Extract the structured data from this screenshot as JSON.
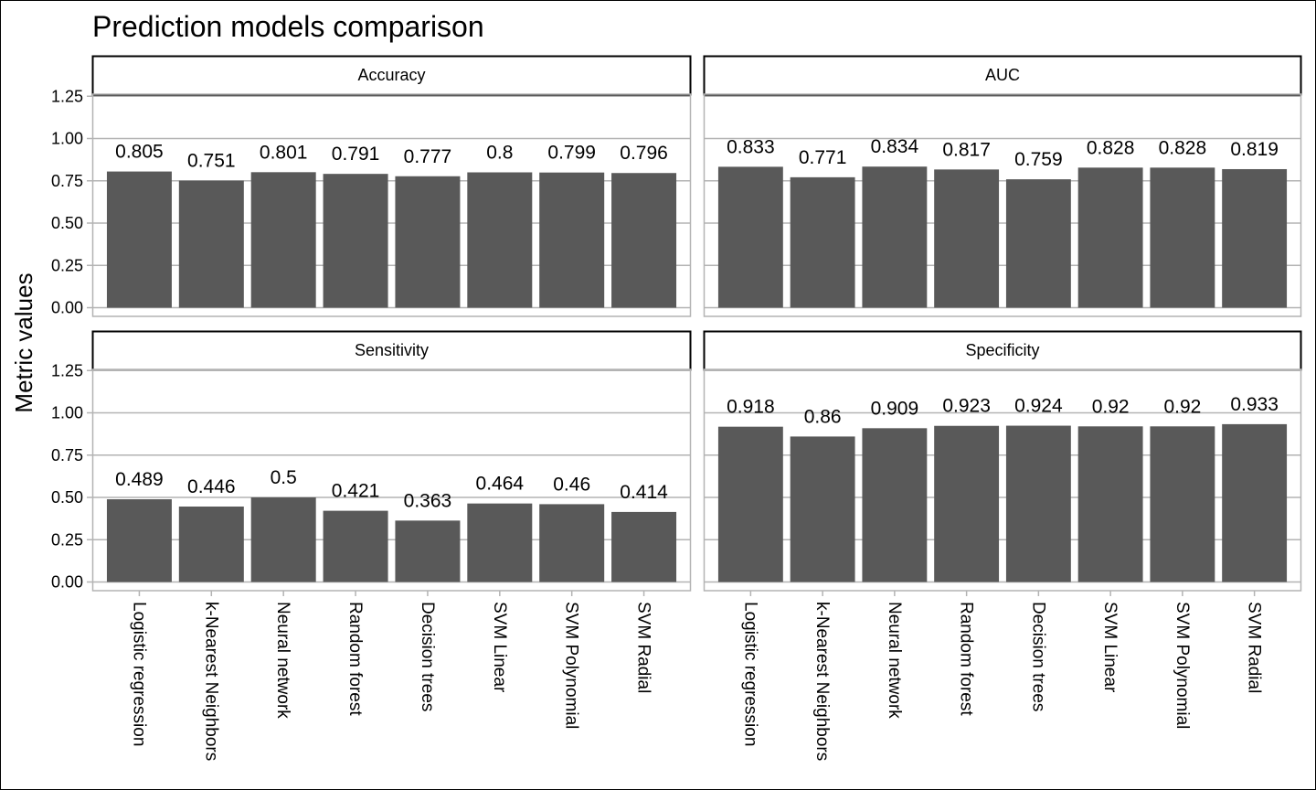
{
  "chart_data": {
    "type": "bar",
    "title": "Prediction models comparison",
    "ylabel": "Metric values",
    "xlabel": "",
    "ylim": [
      0,
      1.25
    ],
    "yticks": [
      "0.00",
      "0.25",
      "0.50",
      "0.75",
      "1.00",
      "1.25"
    ],
    "categories": [
      "Logistic regression",
      "k-Nearest Neighbors",
      "Neural network",
      "Random forest",
      "Decision trees",
      "SVM Linear",
      "SVM Polynomial",
      "SVM Radial"
    ],
    "facet_layout": "2x2 grid",
    "grid": true,
    "legend": "none",
    "panels": [
      {
        "name": "Accuracy",
        "values": [
          0.805,
          0.751,
          0.801,
          0.791,
          0.777,
          0.8,
          0.799,
          0.796
        ],
        "labels": [
          "0.805",
          "0.751",
          "0.801",
          "0.791",
          "0.777",
          "0.8",
          "0.799",
          "0.796"
        ]
      },
      {
        "name": "AUC",
        "values": [
          0.833,
          0.771,
          0.834,
          0.817,
          0.759,
          0.828,
          0.828,
          0.819
        ],
        "labels": [
          "0.833",
          "0.771",
          "0.834",
          "0.817",
          "0.759",
          "0.828",
          "0.828",
          "0.819"
        ]
      },
      {
        "name": "Sensitivity",
        "values": [
          0.489,
          0.446,
          0.5,
          0.421,
          0.363,
          0.464,
          0.46,
          0.414
        ],
        "labels": [
          "0.489",
          "0.446",
          "0.5",
          "0.421",
          "0.363",
          "0.464",
          "0.46",
          "0.414"
        ]
      },
      {
        "name": "Specificity",
        "values": [
          0.918,
          0.86,
          0.909,
          0.923,
          0.924,
          0.92,
          0.92,
          0.933
        ],
        "labels": [
          "0.918",
          "0.86",
          "0.909",
          "0.923",
          "0.924",
          "0.92",
          "0.92",
          "0.933"
        ]
      }
    ]
  },
  "colors": {
    "bar": "#595959",
    "grid": "#b3b3b3",
    "text": "#000000",
    "background": "#ffffff"
  }
}
